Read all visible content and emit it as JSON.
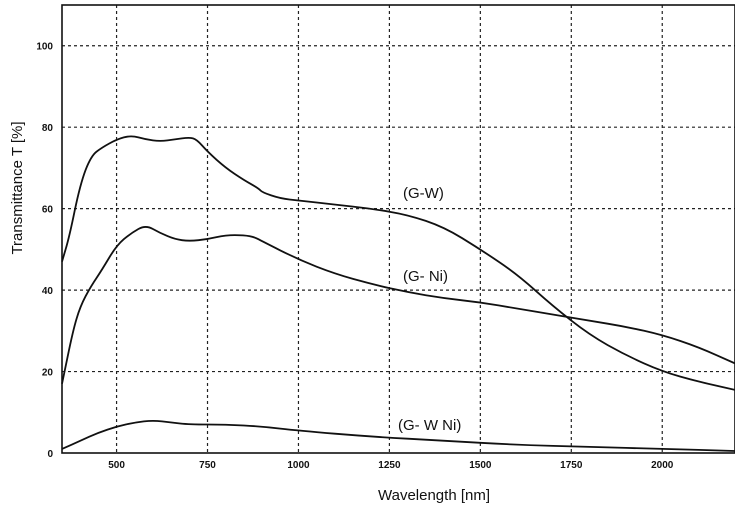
{
  "chart_data": {
    "type": "line",
    "xlabel": "Wavelength  [nm]",
    "ylabel": "Transmittance  T [%]",
    "xlim": [
      350,
      2200
    ],
    "ylim": [
      0,
      110
    ],
    "xticks": [
      500,
      750,
      1000,
      1250,
      1500,
      1750,
      2000
    ],
    "yticks": [
      0,
      20,
      40,
      60,
      80,
      100
    ],
    "grid": true,
    "series": [
      {
        "name": "(G-W)",
        "x": [
          350,
          370,
          400,
          430,
          460,
          500,
          540,
          580,
          620,
          660,
          700,
          720,
          750,
          800,
          850,
          890,
          900,
          950,
          1000,
          1100,
          1200,
          1300,
          1400,
          1500,
          1600,
          1700,
          1800,
          1900,
          2000,
          2100,
          2200
        ],
        "y": [
          47,
          53,
          66,
          73,
          75,
          77,
          78,
          77,
          76.5,
          77,
          77.5,
          77,
          74,
          70,
          67,
          65,
          64,
          62.5,
          62,
          61,
          60,
          58.5,
          55.5,
          50,
          44,
          36,
          29,
          24,
          20,
          17.5,
          15.5
        ]
      },
      {
        "name": "(G- Ni)",
        "x": [
          350,
          380,
          400,
          430,
          460,
          500,
          540,
          580,
          620,
          660,
          700,
          750,
          800,
          850,
          880,
          900,
          1000,
          1100,
          1200,
          1300,
          1400,
          1500,
          1600,
          1700,
          1800,
          1900,
          2000,
          2100,
          2200
        ],
        "y": [
          17,
          30,
          36,
          41,
          45,
          51,
          54,
          56,
          54,
          52.5,
          52,
          52.5,
          53.5,
          53.5,
          53,
          52,
          47.5,
          44,
          41.5,
          39.5,
          38,
          37,
          35.5,
          34,
          32.5,
          31,
          29,
          26,
          22
        ]
      },
      {
        "name": "(G- W Ni)",
        "x": [
          350,
          400,
          450,
          500,
          550,
          600,
          650,
          700,
          800,
          900,
          1000,
          1200,
          1400,
          1600,
          1800,
          2000,
          2200
        ],
        "y": [
          1,
          3,
          5,
          6.5,
          7.5,
          8,
          7.5,
          7,
          7,
          6.5,
          5.5,
          4,
          3,
          2,
          1.5,
          1,
          0.5
        ]
      }
    ]
  }
}
